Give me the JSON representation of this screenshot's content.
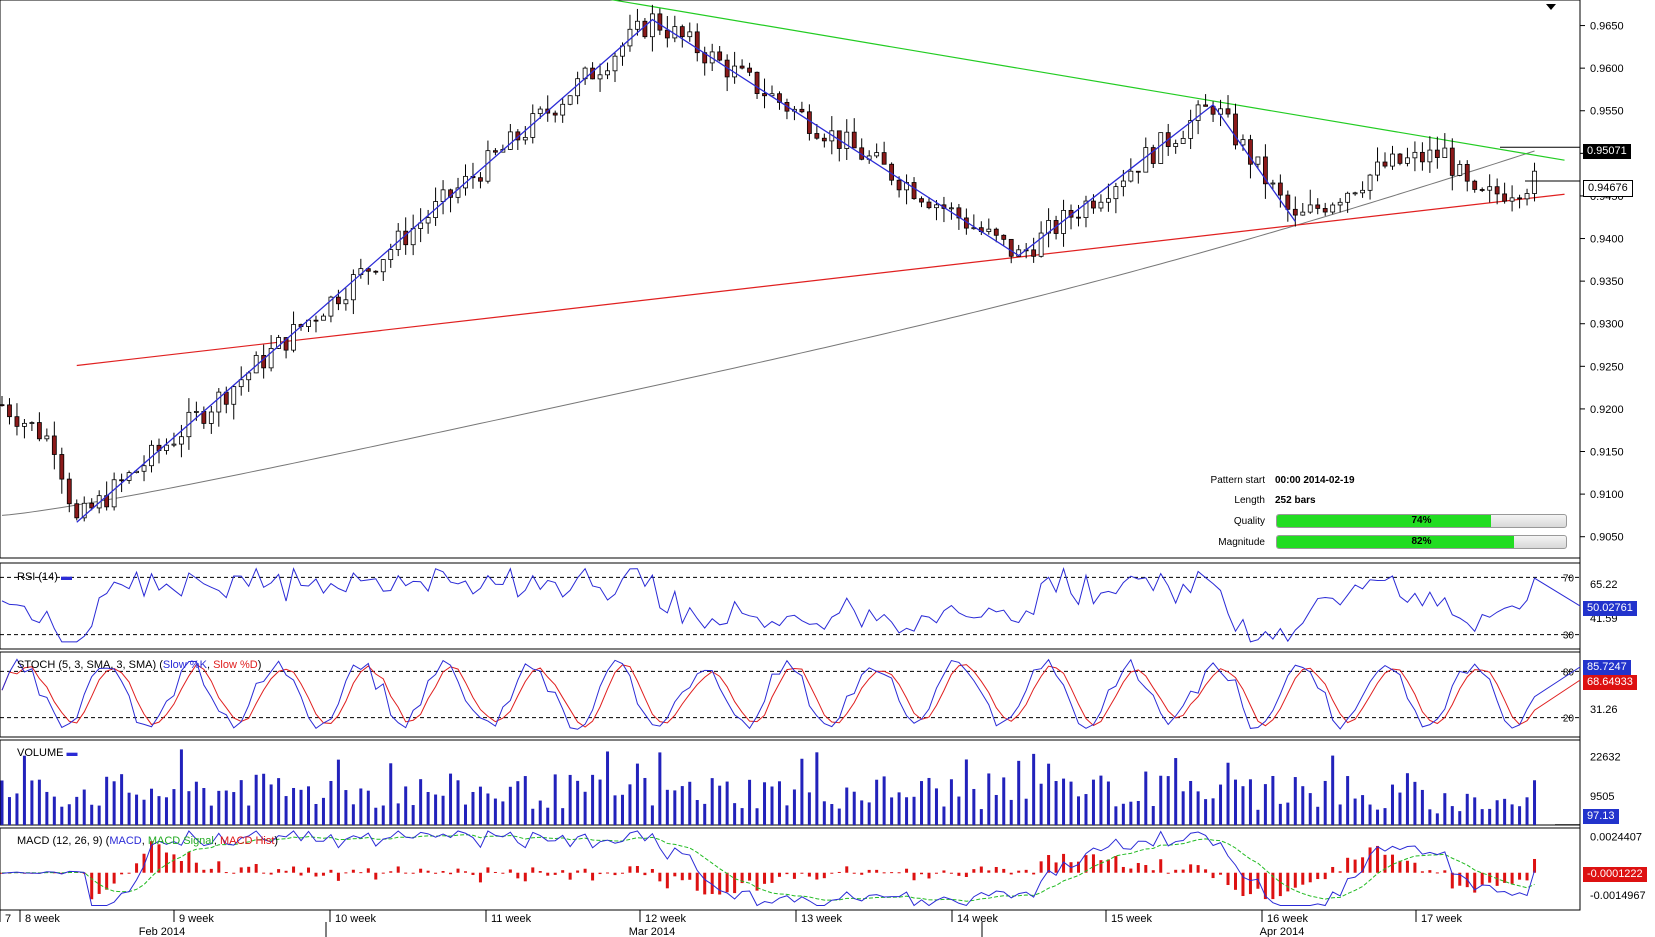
{
  "colors": {
    "bull": "#ffffff",
    "bear": "#8b1a1a",
    "wick": "#000",
    "pattern": "#2b2bd6",
    "resistance": "#22cc22",
    "support": "#e02020",
    "ma": "#777777",
    "rsi": "#2b2bd6",
    "stochK": "#2b2bd6",
    "stochD": "#e02020",
    "volume": "#2222bb",
    "macd": "#2b2bd6",
    "signal": "#22bb22",
    "hist": "#dd1111",
    "grid": "#000"
  },
  "chart_data": [
    {
      "type": "candlestick",
      "name": "price",
      "y_ticks": [
        "0.9650",
        "0.9600",
        "0.9550",
        "0.9500",
        "0.9450",
        "0.9400",
        "0.9350",
        "0.9300",
        "0.9250",
        "0.9200",
        "0.9150",
        "0.9100",
        "0.9050"
      ],
      "ylim": [
        0.9025,
        0.968
      ],
      "current_price": "0.94676",
      "level_price": "0.95071",
      "pattern_points": [
        {
          "bar": 10,
          "price": 0.9067
        },
        {
          "bar": 87,
          "price": 0.9657
        },
        {
          "bar": 136,
          "price": 0.938
        },
        {
          "bar": 162,
          "price": 0.9557
        },
        {
          "bar": 173,
          "price": 0.942
        }
      ],
      "resistance_line": {
        "from": {
          "bar": 75,
          "price": 0.969
        },
        "to": {
          "bar": 205,
          "price": 0.9492
        }
      },
      "support_line": {
        "from": {
          "bar": 10,
          "price": 0.9251
        },
        "to": {
          "bar": 205,
          "price": 0.9452
        }
      }
    },
    {
      "type": "line",
      "name": "RSI",
      "title": "RSI (14)",
      "levels": [
        "70",
        "30"
      ],
      "ticks": [
        "65.22",
        "41.59"
      ],
      "current": "50.02761",
      "ylim": [
        20,
        80
      ]
    },
    {
      "type": "line",
      "name": "STOCH",
      "title": "STOCH (5, 3, SMA, 3, SMA)",
      "series": [
        "Slow %K",
        "Slow %D"
      ],
      "levels": [
        "80",
        "20"
      ],
      "ticks": [
        "31.26"
      ],
      "current": [
        "85.7247",
        "68.64933"
      ],
      "ylim": [
        0,
        100
      ]
    },
    {
      "type": "bar",
      "name": "VOLUME",
      "title": "VOLUME",
      "ticks": [
        "22632",
        "9505"
      ],
      "current": "97.13",
      "ylim": [
        0,
        28000
      ]
    },
    {
      "type": "line",
      "name": "MACD",
      "title": "MACD (12, 26, 9)",
      "series": [
        "MACD",
        "MACD Signal",
        "MACD Hist"
      ],
      "ticks": [
        "0.0024407",
        "-0.0014967"
      ],
      "current": "-0.0001222",
      "ylim": [
        -0.0025,
        0.003
      ]
    }
  ],
  "x_axis": {
    "weeks": [
      "7",
      "8 week",
      "9 week",
      "10 week",
      "11 week",
      "12 week",
      "13 week",
      "14 week",
      "15 week",
      "16 week",
      "17 week"
    ],
    "months": [
      "Feb 2014",
      "Mar 2014",
      "Apr 2014"
    ]
  },
  "info": {
    "pattern_start_label": "Pattern start",
    "pattern_start_value": "00:00 2014-02-19",
    "length_label": "Length",
    "length_value": "252 bars",
    "quality_label": "Quality",
    "quality_value": "74%",
    "quality_pct": 74,
    "magnitude_label": "Magnitude",
    "magnitude_value": "82%",
    "magnitude_pct": 82
  },
  "panels": {
    "rsi_title": "RSI (14)",
    "stoch_title_main": "STOCH (5, 3, SMA, 3, SMA)",
    "stoch_k": "Slow %K",
    "stoch_d": "Slow %D",
    "volume_title": "VOLUME",
    "macd_title_main": "MACD (12, 26, 9)",
    "macd_l": "MACD",
    "macd_s": "MACD Signal",
    "macd_h": "MACD Hist"
  }
}
